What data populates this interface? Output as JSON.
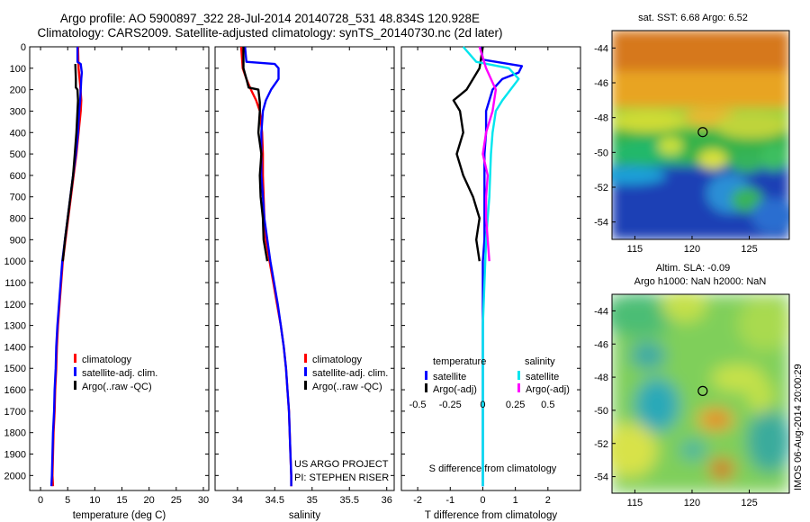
{
  "header": {
    "line1": "Argo profile: AO 5900897_322 28-Jul-2014 20140728_531 48.834S 120.928E",
    "line2": "Climatology: CARS2009. Satellite-adjusted climatology: synTS_20140730.nc (2d later)"
  },
  "colors": {
    "climatology": "#ff0000",
    "satellite": "#0000ff",
    "argo": "#000000",
    "sat_s": "#00e5ee",
    "argo_s": "#ff00ff"
  },
  "chart_data": [
    {
      "type": "line",
      "xlabel": "temperature (deg C)",
      "xlim": [
        -2,
        31
      ],
      "ylim": [
        2070,
        0
      ],
      "xticks": [
        0,
        5,
        10,
        15,
        20,
        25,
        30
      ],
      "yticks": [
        0,
        100,
        200,
        300,
        400,
        500,
        600,
        700,
        800,
        900,
        1000,
        1100,
        1200,
        1300,
        1400,
        1500,
        1600,
        1700,
        1800,
        1900,
        2000
      ],
      "legend": [
        "climatology",
        "satellite-adj. clim.",
        "Argo(..raw -QC)"
      ],
      "series": [
        {
          "name": "climatology",
          "color": "#ff0000",
          "points": [
            [
              6.9,
              0
            ],
            [
              7.0,
              100
            ],
            [
              7.3,
              180
            ],
            [
              7.5,
              250
            ],
            [
              7.4,
              300
            ],
            [
              7.0,
              400
            ],
            [
              6.6,
              500
            ],
            [
              6.1,
              600
            ],
            [
              5.6,
              700
            ],
            [
              5.1,
              800
            ],
            [
              4.6,
              900
            ],
            [
              4.1,
              1000
            ],
            [
              3.8,
              1100
            ],
            [
              3.5,
              1200
            ],
            [
              3.2,
              1300
            ],
            [
              3.0,
              1400
            ],
            [
              2.9,
              1500
            ],
            [
              2.7,
              1600
            ],
            [
              2.6,
              1700
            ],
            [
              2.4,
              1800
            ],
            [
              2.3,
              1900
            ],
            [
              2.2,
              2000
            ],
            [
              2.3,
              2050
            ]
          ]
        },
        {
          "name": "satellite-adj. clim.",
          "color": "#0000ff",
          "points": [
            [
              6.8,
              0
            ],
            [
              6.8,
              70
            ],
            [
              7.4,
              80
            ],
            [
              7.6,
              120
            ],
            [
              7.5,
              150
            ],
            [
              7.3,
              250
            ],
            [
              7.1,
              300
            ],
            [
              6.9,
              400
            ],
            [
              6.5,
              500
            ],
            [
              6.0,
              600
            ],
            [
              5.5,
              700
            ],
            [
              5.0,
              800
            ],
            [
              4.5,
              900
            ],
            [
              4.0,
              1000
            ],
            [
              3.7,
              1100
            ],
            [
              3.4,
              1200
            ],
            [
              3.1,
              1300
            ],
            [
              2.9,
              1400
            ],
            [
              2.8,
              1500
            ],
            [
              2.6,
              1600
            ],
            [
              2.5,
              1700
            ],
            [
              2.3,
              1800
            ],
            [
              2.2,
              1900
            ],
            [
              2.1,
              2000
            ],
            [
              2.0,
              2050
            ]
          ]
        },
        {
          "name": "Argo(..raw -QC)",
          "color": "#000000",
          "points": [
            [
              6.4,
              80
            ],
            [
              6.5,
              150
            ],
            [
              6.5,
              190
            ],
            [
              6.8,
              200
            ],
            [
              6.9,
              250
            ],
            [
              6.8,
              300
            ],
            [
              6.6,
              400
            ],
            [
              6.3,
              500
            ],
            [
              6.0,
              600
            ],
            [
              5.5,
              700
            ],
            [
              5.0,
              800
            ],
            [
              4.5,
              900
            ],
            [
              4.1,
              1000
            ]
          ]
        }
      ]
    },
    {
      "type": "line",
      "xlabel": "salinity",
      "xlim": [
        33.7,
        36.1
      ],
      "ylim": [
        2070,
        0
      ],
      "xticks": [
        34,
        34.5,
        35,
        35.5,
        36
      ],
      "legend": [
        "climatology",
        "satellite-adj. clim.",
        "Argo(..raw -QC)"
      ],
      "series": [
        {
          "name": "climatology",
          "color": "#ff0000",
          "points": [
            [
              34.05,
              0
            ],
            [
              34.07,
              100
            ],
            [
              34.12,
              150
            ],
            [
              34.18,
              200
            ],
            [
              34.25,
              250
            ],
            [
              34.3,
              300
            ],
            [
              34.33,
              400
            ],
            [
              34.34,
              500
            ],
            [
              34.34,
              600
            ],
            [
              34.35,
              700
            ],
            [
              34.36,
              800
            ],
            [
              34.38,
              900
            ],
            [
              34.43,
              1000
            ],
            [
              34.48,
              1100
            ],
            [
              34.53,
              1200
            ],
            [
              34.58,
              1300
            ],
            [
              34.62,
              1400
            ],
            [
              34.65,
              1500
            ],
            [
              34.67,
              1600
            ],
            [
              34.69,
              1700
            ],
            [
              34.7,
              1800
            ],
            [
              34.71,
              1900
            ],
            [
              34.72,
              2000
            ],
            [
              34.72,
              2050
            ]
          ]
        },
        {
          "name": "satellite-adj. clim.",
          "color": "#0000ff",
          "points": [
            [
              34.1,
              0
            ],
            [
              34.12,
              70
            ],
            [
              34.5,
              80
            ],
            [
              34.55,
              100
            ],
            [
              34.55,
              150
            ],
            [
              34.45,
              200
            ],
            [
              34.38,
              250
            ],
            [
              34.34,
              300
            ],
            [
              34.32,
              400
            ],
            [
              34.32,
              500
            ],
            [
              34.32,
              600
            ],
            [
              34.34,
              700
            ],
            [
              34.36,
              800
            ],
            [
              34.4,
              900
            ],
            [
              34.44,
              1000
            ],
            [
              34.49,
              1100
            ],
            [
              34.54,
              1200
            ],
            [
              34.58,
              1300
            ],
            [
              34.62,
              1400
            ],
            [
              34.65,
              1500
            ],
            [
              34.67,
              1600
            ],
            [
              34.69,
              1700
            ],
            [
              34.7,
              1800
            ],
            [
              34.71,
              1900
            ],
            [
              34.72,
              2000
            ],
            [
              34.72,
              2050
            ]
          ]
        },
        {
          "name": "Argo(..raw -QC)",
          "color": "#000000",
          "points": [
            [
              34.08,
              0
            ],
            [
              34.08,
              100
            ],
            [
              34.12,
              150
            ],
            [
              34.15,
              190
            ],
            [
              34.28,
              200
            ],
            [
              34.3,
              260
            ],
            [
              34.3,
              300
            ],
            [
              34.28,
              400
            ],
            [
              34.32,
              500
            ],
            [
              34.3,
              600
            ],
            [
              34.31,
              700
            ],
            [
              34.34,
              800
            ],
            [
              34.35,
              900
            ],
            [
              34.4,
              1000
            ]
          ]
        }
      ]
    },
    {
      "type": "line",
      "xlabel": "T difference from climatology",
      "xlabel2": "S difference from climatology",
      "xlim": [
        -2.5,
        3
      ],
      "ylim": [
        2070,
        0
      ],
      "xticks": [
        -2,
        -1,
        0,
        1,
        2
      ],
      "xticks2": [
        "-0.5",
        "-0.25",
        "0",
        "0.25",
        "0.5"
      ],
      "xticks2_pos": [
        -2,
        -1,
        0,
        1,
        2
      ],
      "legend_head": [
        "temperature",
        "salinity"
      ],
      "legend": [
        "satellite",
        "Argo(-adj)",
        "satellite",
        "Argo(-adj)"
      ],
      "series": [
        {
          "name": "satellite",
          "color": "#0000ff",
          "points": [
            [
              -0.05,
              0
            ],
            [
              0,
              60
            ],
            [
              1.2,
              90
            ],
            [
              1.1,
              120
            ],
            [
              0.6,
              150
            ],
            [
              0.3,
              200
            ],
            [
              0.2,
              250
            ],
            [
              0.1,
              300
            ],
            [
              0.1,
              400
            ],
            [
              0.05,
              500
            ],
            [
              0.05,
              700
            ],
            [
              0.05,
              900
            ],
            [
              0,
              1000
            ],
            [
              0,
              1100
            ],
            [
              0,
              1200
            ],
            [
              0,
              1400
            ],
            [
              0,
              1600
            ],
            [
              0,
              1800
            ],
            [
              0,
              2000
            ],
            [
              0,
              2050
            ]
          ]
        },
        {
          "name": "Argo(-adj)",
          "color": "#000000",
          "points": [
            [
              0,
              0
            ],
            [
              -0.1,
              100
            ],
            [
              -0.5,
              200
            ],
            [
              -0.9,
              250
            ],
            [
              -0.7,
              300
            ],
            [
              -0.6,
              400
            ],
            [
              -0.8,
              500
            ],
            [
              -0.6,
              600
            ],
            [
              -0.3,
              700
            ],
            [
              -0.1,
              800
            ],
            [
              -0.2,
              900
            ],
            [
              -0.1,
              1000
            ]
          ]
        },
        {
          "name": "satellite",
          "color": "#00e5ee",
          "points": [
            [
              -0.6,
              0
            ],
            [
              -0.2,
              70
            ],
            [
              0.8,
              100
            ],
            [
              1.1,
              150
            ],
            [
              0.6,
              250
            ],
            [
              0.4,
              300
            ],
            [
              0.3,
              400
            ],
            [
              0.25,
              500
            ],
            [
              0.2,
              700
            ],
            [
              0.1,
              900
            ],
            [
              0.05,
              1100
            ],
            [
              0,
              1300
            ],
            [
              0,
              1500
            ],
            [
              0,
              1700
            ],
            [
              0,
              1900
            ],
            [
              0,
              2050
            ]
          ]
        },
        {
          "name": "Argo(-adj)",
          "color": "#ff00ff",
          "points": [
            [
              -0.1,
              0
            ],
            [
              0.1,
              100
            ],
            [
              0.4,
              200
            ],
            [
              0.3,
              300
            ],
            [
              0.1,
              400
            ],
            [
              0,
              500
            ],
            [
              0.15,
              600
            ],
            [
              0.1,
              700
            ],
            [
              0.1,
              800
            ],
            [
              0.15,
              900
            ],
            [
              0.2,
              1000
            ]
          ]
        }
      ]
    }
  ],
  "credits": {
    "line1": "US ARGO PROJECT",
    "line2": "PI: STEPHEN RISER"
  },
  "map1": {
    "title": "sat. SST: 6.68 Argo: 6.52",
    "yticks": [
      "-44",
      "-46",
      "-48",
      "-50",
      "-52",
      "-54"
    ],
    "xticks": [
      "115",
      "120",
      "125"
    ],
    "ylim": [
      -43,
      -55
    ],
    "xlim": [
      113,
      128.5
    ],
    "marker": [
      120.93,
      -48.83
    ]
  },
  "map2": {
    "title1": "Altim. SLA: -0.09",
    "title2": "Argo h1000: NaN h2000: NaN",
    "yticks": [
      "-44",
      "-46",
      "-48",
      "-50",
      "-52",
      "-54"
    ],
    "xticks": [
      "115",
      "120",
      "125"
    ],
    "ylim": [
      -43,
      -55
    ],
    "xlim": [
      113,
      128.5
    ],
    "marker": [
      120.93,
      -48.83
    ]
  },
  "footer": {
    "stamp": "IMOS 06-Aug-2014 20:00:29"
  }
}
